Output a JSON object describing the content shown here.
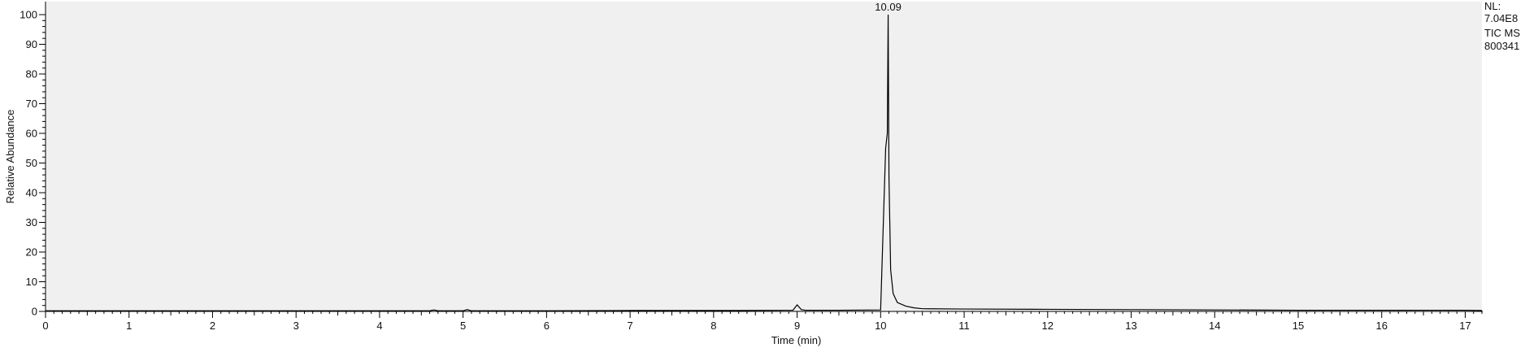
{
  "chart_data": {
    "type": "line",
    "title": "",
    "xlabel": "Time (min)",
    "ylabel": "Relative Abundance",
    "xlim": [
      0,
      17.2
    ],
    "ylim": [
      0,
      100
    ],
    "x_ticks": [
      "0",
      "1",
      "2",
      "3",
      "4",
      "5",
      "6",
      "7",
      "8",
      "9",
      "10",
      "11",
      "12",
      "13",
      "14",
      "15",
      "16",
      "17"
    ],
    "y_ticks": [
      "0",
      "10",
      "20",
      "30",
      "40",
      "50",
      "60",
      "70",
      "80",
      "90",
      "100"
    ],
    "grid": false,
    "legend": "none",
    "series": [
      {
        "color": "#000000",
        "x": [
          0,
          1,
          2,
          3,
          4,
          4.6,
          4.65,
          4.7,
          5.0,
          5.05,
          5.1,
          6,
          7,
          8.3,
          8.95,
          9.0,
          9.05,
          9.1,
          9.5,
          10.0,
          10.06,
          10.08,
          10.09,
          10.1,
          10.12,
          10.15,
          10.2,
          10.3,
          10.4,
          10.5,
          11,
          12,
          13,
          14,
          15,
          16,
          17,
          17.2
        ],
        "y": [
          0.2,
          0.2,
          0.2,
          0.2,
          0.2,
          0.2,
          0.5,
          0.2,
          0.2,
          0.6,
          0.2,
          0.2,
          0.3,
          0.3,
          0.4,
          2.2,
          0.6,
          0.4,
          0.4,
          0.5,
          55,
          60,
          100,
          45,
          14,
          6,
          3,
          1.8,
          1.2,
          0.9,
          0.8,
          0.7,
          0.6,
          0.5,
          0.4,
          0.4,
          0.4,
          0.3
        ]
      }
    ],
    "annotations": [
      {
        "text": "10.09",
        "x": 10.09,
        "y": 100
      }
    ]
  },
  "nl_label": {
    "line1": "NL:",
    "line2": "7.04E8",
    "line3": "TIC  MS",
    "line4": "800341"
  }
}
